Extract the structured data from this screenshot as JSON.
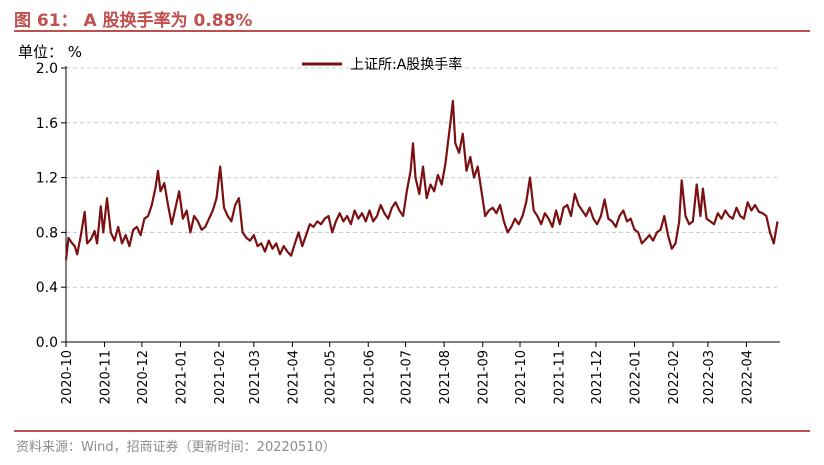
{
  "figure": {
    "title": "图 61： A 股换手率为 0.88%",
    "source": "资料来源：Wind，招商证券（更新时间：20220510）"
  },
  "colors": {
    "accent": "#c0504d",
    "line": "#7b1010",
    "grid": "#c8c8c8"
  },
  "chart_data": {
    "type": "line",
    "unit_label": "单位： %",
    "ylim": [
      0.0,
      2.0
    ],
    "yticks": [
      "0.0",
      "0.4",
      "0.8",
      "1.2",
      "1.6",
      "2.0"
    ],
    "grid": true,
    "legend_position": "top-center",
    "x_tick_labels": [
      "2020-10",
      "2020-11",
      "2020-12",
      "2021-01",
      "2021-02",
      "2021-03",
      "2021-04",
      "2021-05",
      "2021-06",
      "2021-07",
      "2021-08",
      "2021-09",
      "2021-10",
      "2021-11",
      "2021-12",
      "2022-01",
      "2022-02",
      "2022-03",
      "2022-04"
    ],
    "series": [
      {
        "name": "上证所:A股换手率",
        "points": [
          [
            "2020-10-01",
            0.6
          ],
          [
            "2020-10-03",
            0.76
          ],
          [
            "2020-10-06",
            0.72
          ],
          [
            "2020-10-08",
            0.7
          ],
          [
            "2020-10-10",
            0.64
          ],
          [
            "2020-10-13",
            0.78
          ],
          [
            "2020-10-16",
            0.95
          ],
          [
            "2020-10-18",
            0.72
          ],
          [
            "2020-10-21",
            0.75
          ],
          [
            "2020-10-24",
            0.81
          ],
          [
            "2020-10-26",
            0.72
          ],
          [
            "2020-10-29",
            0.99
          ],
          [
            "2020-10-31",
            0.8
          ],
          [
            "2020-11-03",
            1.05
          ],
          [
            "2020-11-06",
            0.8
          ],
          [
            "2020-11-09",
            0.74
          ],
          [
            "2020-11-12",
            0.84
          ],
          [
            "2020-11-15",
            0.72
          ],
          [
            "2020-11-18",
            0.78
          ],
          [
            "2020-11-21",
            0.7
          ],
          [
            "2020-11-24",
            0.82
          ],
          [
            "2020-11-27",
            0.84
          ],
          [
            "2020-11-30",
            0.78
          ],
          [
            "2020-12-03",
            0.9
          ],
          [
            "2020-12-06",
            0.92
          ],
          [
            "2020-12-09",
            1.0
          ],
          [
            "2020-12-12",
            1.13
          ],
          [
            "2020-12-14",
            1.25
          ],
          [
            "2020-12-16",
            1.1
          ],
          [
            "2020-12-19",
            1.16
          ],
          [
            "2020-12-22",
            1.0
          ],
          [
            "2020-12-25",
            0.86
          ],
          [
            "2020-12-28",
            0.98
          ],
          [
            "2020-12-31",
            1.1
          ],
          [
            "2021-01-03",
            0.9
          ],
          [
            "2021-01-06",
            0.96
          ],
          [
            "2021-01-09",
            0.8
          ],
          [
            "2021-01-12",
            0.92
          ],
          [
            "2021-01-15",
            0.88
          ],
          [
            "2021-01-18",
            0.82
          ],
          [
            "2021-01-21",
            0.84
          ],
          [
            "2021-01-24",
            0.9
          ],
          [
            "2021-01-27",
            0.96
          ],
          [
            "2021-01-30",
            1.05
          ],
          [
            "2021-02-02",
            1.28
          ],
          [
            "2021-02-05",
            0.98
          ],
          [
            "2021-02-08",
            0.92
          ],
          [
            "2021-02-11",
            0.88
          ],
          [
            "2021-02-14",
            1.0
          ],
          [
            "2021-02-17",
            1.05
          ],
          [
            "2021-02-20",
            0.8
          ],
          [
            "2021-02-23",
            0.76
          ],
          [
            "2021-02-26",
            0.74
          ],
          [
            "2021-03-01",
            0.78
          ],
          [
            "2021-03-04",
            0.7
          ],
          [
            "2021-03-07",
            0.72
          ],
          [
            "2021-03-10",
            0.66
          ],
          [
            "2021-03-13",
            0.74
          ],
          [
            "2021-03-16",
            0.68
          ],
          [
            "2021-03-19",
            0.72
          ],
          [
            "2021-03-22",
            0.64
          ],
          [
            "2021-03-25",
            0.7
          ],
          [
            "2021-03-28",
            0.66
          ],
          [
            "2021-03-31",
            0.63
          ],
          [
            "2021-04-03",
            0.72
          ],
          [
            "2021-04-06",
            0.8
          ],
          [
            "2021-04-09",
            0.7
          ],
          [
            "2021-04-12",
            0.78
          ],
          [
            "2021-04-15",
            0.86
          ],
          [
            "2021-04-18",
            0.84
          ],
          [
            "2021-04-21",
            0.88
          ],
          [
            "2021-04-24",
            0.86
          ],
          [
            "2021-04-27",
            0.9
          ],
          [
            "2021-04-30",
            0.92
          ],
          [
            "2021-05-03",
            0.8
          ],
          [
            "2021-05-06",
            0.88
          ],
          [
            "2021-05-09",
            0.94
          ],
          [
            "2021-05-12",
            0.88
          ],
          [
            "2021-05-15",
            0.92
          ],
          [
            "2021-05-18",
            0.86
          ],
          [
            "2021-05-21",
            0.96
          ],
          [
            "2021-05-24",
            0.9
          ],
          [
            "2021-05-27",
            0.94
          ],
          [
            "2021-05-30",
            0.88
          ],
          [
            "2021-06-02",
            0.96
          ],
          [
            "2021-06-05",
            0.88
          ],
          [
            "2021-06-08",
            0.92
          ],
          [
            "2021-06-11",
            1.0
          ],
          [
            "2021-06-14",
            0.94
          ],
          [
            "2021-06-17",
            0.9
          ],
          [
            "2021-06-20",
            0.98
          ],
          [
            "2021-06-23",
            1.02
          ],
          [
            "2021-06-26",
            0.96
          ],
          [
            "2021-06-29",
            0.92
          ],
          [
            "2021-07-02",
            1.1
          ],
          [
            "2021-07-05",
            1.25
          ],
          [
            "2021-07-07",
            1.45
          ],
          [
            "2021-07-09",
            1.2
          ],
          [
            "2021-07-12",
            1.08
          ],
          [
            "2021-07-15",
            1.28
          ],
          [
            "2021-07-18",
            1.05
          ],
          [
            "2021-07-21",
            1.15
          ],
          [
            "2021-07-24",
            1.1
          ],
          [
            "2021-07-27",
            1.22
          ],
          [
            "2021-07-30",
            1.15
          ],
          [
            "2021-08-02",
            1.3
          ],
          [
            "2021-08-04",
            1.45
          ],
          [
            "2021-08-06",
            1.6
          ],
          [
            "2021-08-08",
            1.76
          ],
          [
            "2021-08-10",
            1.45
          ],
          [
            "2021-08-13",
            1.38
          ],
          [
            "2021-08-16",
            1.52
          ],
          [
            "2021-08-19",
            1.25
          ],
          [
            "2021-08-22",
            1.35
          ],
          [
            "2021-08-25",
            1.2
          ],
          [
            "2021-08-28",
            1.28
          ],
          [
            "2021-08-31",
            1.1
          ],
          [
            "2021-09-03",
            0.92
          ],
          [
            "2021-09-06",
            0.96
          ],
          [
            "2021-09-09",
            0.98
          ],
          [
            "2021-09-12",
            0.94
          ],
          [
            "2021-09-15",
            1.0
          ],
          [
            "2021-09-18",
            0.88
          ],
          [
            "2021-09-21",
            0.8
          ],
          [
            "2021-09-24",
            0.84
          ],
          [
            "2021-09-27",
            0.9
          ],
          [
            "2021-09-30",
            0.86
          ],
          [
            "2021-10-03",
            0.92
          ],
          [
            "2021-10-06",
            1.02
          ],
          [
            "2021-10-09",
            1.2
          ],
          [
            "2021-10-12",
            0.96
          ],
          [
            "2021-10-15",
            0.92
          ],
          [
            "2021-10-18",
            0.86
          ],
          [
            "2021-10-21",
            0.94
          ],
          [
            "2021-10-24",
            0.9
          ],
          [
            "2021-10-27",
            0.84
          ],
          [
            "2021-10-30",
            0.96
          ],
          [
            "2021-11-02",
            0.86
          ],
          [
            "2021-11-05",
            0.98
          ],
          [
            "2021-11-08",
            1.0
          ],
          [
            "2021-11-11",
            0.92
          ],
          [
            "2021-11-14",
            1.08
          ],
          [
            "2021-11-17",
            1.0
          ],
          [
            "2021-11-20",
            0.96
          ],
          [
            "2021-11-23",
            0.92
          ],
          [
            "2021-11-26",
            0.98
          ],
          [
            "2021-11-29",
            0.9
          ],
          [
            "2021-12-02",
            0.86
          ],
          [
            "2021-12-05",
            0.92
          ],
          [
            "2021-12-08",
            1.04
          ],
          [
            "2021-12-11",
            0.9
          ],
          [
            "2021-12-14",
            0.88
          ],
          [
            "2021-12-17",
            0.84
          ],
          [
            "2021-12-20",
            0.92
          ],
          [
            "2021-12-23",
            0.96
          ],
          [
            "2021-12-26",
            0.88
          ],
          [
            "2021-12-29",
            0.9
          ],
          [
            "2022-01-01",
            0.82
          ],
          [
            "2022-01-04",
            0.8
          ],
          [
            "2022-01-07",
            0.72
          ],
          [
            "2022-01-10",
            0.75
          ],
          [
            "2022-01-13",
            0.78
          ],
          [
            "2022-01-16",
            0.74
          ],
          [
            "2022-01-19",
            0.8
          ],
          [
            "2022-01-22",
            0.82
          ],
          [
            "2022-01-25",
            0.92
          ],
          [
            "2022-01-28",
            0.78
          ],
          [
            "2022-01-31",
            0.68
          ],
          [
            "2022-02-03",
            0.72
          ],
          [
            "2022-02-06",
            0.88
          ],
          [
            "2022-02-08",
            1.18
          ],
          [
            "2022-02-11",
            0.92
          ],
          [
            "2022-02-14",
            0.86
          ],
          [
            "2022-02-17",
            0.88
          ],
          [
            "2022-02-20",
            1.15
          ],
          [
            "2022-02-23",
            0.92
          ],
          [
            "2022-02-25",
            1.12
          ],
          [
            "2022-02-28",
            0.9
          ],
          [
            "2022-03-03",
            0.88
          ],
          [
            "2022-03-06",
            0.86
          ],
          [
            "2022-03-09",
            0.94
          ],
          [
            "2022-03-12",
            0.9
          ],
          [
            "2022-03-15",
            0.96
          ],
          [
            "2022-03-18",
            0.92
          ],
          [
            "2022-03-21",
            0.9
          ],
          [
            "2022-03-24",
            0.98
          ],
          [
            "2022-03-27",
            0.92
          ],
          [
            "2022-03-30",
            0.9
          ],
          [
            "2022-04-02",
            1.02
          ],
          [
            "2022-04-05",
            0.96
          ],
          [
            "2022-04-08",
            1.0
          ],
          [
            "2022-04-11",
            0.95
          ],
          [
            "2022-04-14",
            0.94
          ],
          [
            "2022-04-17",
            0.92
          ],
          [
            "2022-04-20",
            0.8
          ],
          [
            "2022-04-23",
            0.72
          ],
          [
            "2022-04-26",
            0.88
          ]
        ]
      }
    ]
  }
}
